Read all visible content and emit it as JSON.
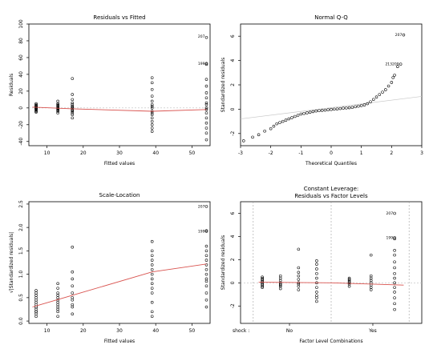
{
  "chart_data": [
    {
      "id": "rvf",
      "type": "scatter",
      "title": "Residuals vs Fitted",
      "xlabel": "Fitted values",
      "ylabel": "Residuals",
      "xlim": [
        5,
        55
      ],
      "ylim": [
        -45,
        100
      ],
      "xticks": [
        10,
        20,
        30,
        40,
        50
      ],
      "yticks": [
        -40,
        -20,
        0,
        20,
        40,
        60,
        80,
        100
      ],
      "clusters": [
        {
          "x": 7,
          "values": [
            -5,
            -3,
            -2,
            -1,
            0,
            1,
            2,
            3,
            4,
            5,
            -4,
            0,
            1,
            -1,
            2
          ]
        },
        {
          "x": 13,
          "values": [
            -6,
            -4,
            -3,
            -2,
            -1,
            0,
            1,
            2,
            3,
            5,
            8,
            -1,
            0,
            4
          ]
        },
        {
          "x": 17,
          "values": [
            -12,
            -8,
            -6,
            -4,
            -2,
            0,
            2,
            4,
            6,
            10,
            16,
            35,
            -3,
            1
          ]
        },
        {
          "x": 39,
          "values": [
            -28,
            -24,
            -20,
            -16,
            -12,
            -8,
            -4,
            0,
            4,
            8,
            14,
            22,
            30,
            36,
            -6,
            2
          ]
        },
        {
          "x": 54,
          "values": [
            -38,
            -30,
            -24,
            -18,
            -12,
            -6,
            0,
            6,
            12,
            18,
            26,
            34,
            52,
            53,
            84,
            -2,
            4
          ]
        }
      ],
      "smooth": [
        [
          6,
          1
        ],
        [
          17,
          -1
        ],
        [
          39,
          -4
        ],
        [
          54,
          -2
        ]
      ],
      "reference_y": 0,
      "point_labels": [
        {
          "label": "207",
          "x": 54,
          "y": 85
        },
        {
          "label": "199",
          "x": 54,
          "y": 53
        }
      ]
    },
    {
      "id": "qq",
      "type": "scatter",
      "title": "Normal Q-Q",
      "xlabel": "Theoretical Quantiles",
      "ylabel": "Standardized residuals",
      "xlim": [
        -3,
        3
      ],
      "ylim": [
        -3,
        7
      ],
      "xticks": [
        -3,
        -2,
        -1,
        0,
        1,
        2,
        3
      ],
      "yticks": [
        -2,
        0,
        2,
        4,
        6
      ],
      "points": [
        [
          -2.9,
          -2.6
        ],
        [
          -2.6,
          -2.3
        ],
        [
          -2.4,
          -2.1
        ],
        [
          -2.2,
          -1.8
        ],
        [
          -2.0,
          -1.6
        ],
        [
          -1.9,
          -1.4
        ],
        [
          -1.8,
          -1.2
        ],
        [
          -1.7,
          -1.1
        ],
        [
          -1.6,
          -1.0
        ],
        [
          -1.5,
          -0.9
        ],
        [
          -1.4,
          -0.8
        ],
        [
          -1.3,
          -0.7
        ],
        [
          -1.2,
          -0.6
        ],
        [
          -1.1,
          -0.5
        ],
        [
          -1.0,
          -0.4
        ],
        [
          -0.9,
          -0.35
        ],
        [
          -0.8,
          -0.3
        ],
        [
          -0.7,
          -0.25
        ],
        [
          -0.6,
          -0.2
        ],
        [
          -0.5,
          -0.15
        ],
        [
          -0.4,
          -0.12
        ],
        [
          -0.3,
          -0.1
        ],
        [
          -0.2,
          -0.08
        ],
        [
          -0.1,
          -0.05
        ],
        [
          0.0,
          -0.02
        ],
        [
          0.1,
          0.0
        ],
        [
          0.2,
          0.02
        ],
        [
          0.3,
          0.05
        ],
        [
          0.4,
          0.08
        ],
        [
          0.5,
          0.1
        ],
        [
          0.6,
          0.12
        ],
        [
          0.7,
          0.15
        ],
        [
          0.8,
          0.2
        ],
        [
          0.9,
          0.25
        ],
        [
          1.0,
          0.3
        ],
        [
          1.1,
          0.35
        ],
        [
          1.2,
          0.45
        ],
        [
          1.3,
          0.6
        ],
        [
          1.4,
          0.8
        ],
        [
          1.5,
          1.0
        ],
        [
          1.6,
          1.2
        ],
        [
          1.7,
          1.4
        ],
        [
          1.8,
          1.6
        ],
        [
          1.9,
          1.9
        ],
        [
          2.0,
          2.2
        ],
        [
          2.05,
          2.6
        ],
        [
          2.1,
          2.8
        ],
        [
          2.2,
          3.5
        ],
        [
          2.3,
          3.7
        ],
        [
          2.4,
          6.1
        ]
      ],
      "qq_line": [
        [
          -3,
          -0.8
        ],
        [
          3,
          1.05
        ]
      ],
      "point_labels": [
        {
          "label": "207",
          "x": 2.4,
          "y": 6.1
        },
        {
          "label": "213209",
          "x": 2.3,
          "y": 3.7
        }
      ]
    },
    {
      "id": "sl",
      "type": "scatter",
      "title": "Scale-Location",
      "xlabel": "Fitted values",
      "ylabel": "√|Standardized residuals|",
      "xlim": [
        5,
        55
      ],
      "ylim": [
        -0.05,
        2.55
      ],
      "xticks": [
        10,
        20,
        30,
        40,
        50
      ],
      "yticks": [
        0.0,
        0.5,
        1.0,
        1.5,
        2.0,
        2.5
      ],
      "clusters": [
        {
          "x": 7,
          "values": [
            0.1,
            0.15,
            0.2,
            0.25,
            0.3,
            0.35,
            0.4,
            0.45,
            0.5,
            0.55,
            0.6,
            0.65,
            0.2,
            0.3
          ]
        },
        {
          "x": 13,
          "values": [
            0.1,
            0.2,
            0.3,
            0.4,
            0.5,
            0.6,
            0.7,
            0.8,
            0.25,
            0.45,
            0.35,
            0.55
          ]
        },
        {
          "x": 17,
          "values": [
            0.15,
            0.3,
            0.45,
            0.6,
            0.75,
            0.9,
            1.05,
            0.5,
            1.58,
            0.35
          ]
        },
        {
          "x": 39,
          "values": [
            0.1,
            0.2,
            0.4,
            0.6,
            0.8,
            0.9,
            1.0,
            1.1,
            1.2,
            1.3,
            1.4,
            1.5,
            1.7,
            0.7
          ]
        },
        {
          "x": 54,
          "values": [
            0.3,
            0.45,
            0.6,
            0.75,
            0.9,
            1.0,
            1.1,
            1.2,
            1.3,
            1.4,
            1.5,
            1.6,
            1.92,
            1.93,
            2.45,
            0.85
          ]
        }
      ],
      "smooth": [
        [
          6,
          0.3
        ],
        [
          17,
          0.55
        ],
        [
          39,
          1.05
        ],
        [
          54,
          1.22
        ]
      ],
      "point_labels": [
        {
          "label": "207",
          "x": 54,
          "y": 2.45
        },
        {
          "label": "199",
          "x": 54,
          "y": 1.92
        }
      ]
    },
    {
      "id": "lev",
      "type": "scatter",
      "title": "Constant Leverage:",
      "subtitle": "Residuals vs Factor Levels",
      "xlabel": "Factor Level Combinations",
      "ylabel": "Standardized residuals",
      "xlim": [
        0,
        1
      ],
      "ylim": [
        -3.5,
        7
      ],
      "yticks": [
        -2,
        0,
        2,
        4,
        6
      ],
      "factor_name": "shock :",
      "factor_levels": [
        "No",
        "Yes"
      ],
      "level_bounds": [
        0.07,
        0.5,
        0.93
      ],
      "level_centers": [
        0.27,
        0.73
      ],
      "clusters": [
        {
          "x": 0.12,
          "values": [
            -0.3,
            -0.2,
            -0.1,
            0.0,
            0.1,
            0.2,
            0.3,
            0.4,
            0.5,
            -0.4
          ]
        },
        {
          "x": 0.22,
          "values": [
            -0.5,
            -0.3,
            -0.1,
            0.0,
            0.2,
            0.4,
            0.6,
            -0.2
          ]
        },
        {
          "x": 0.32,
          "values": [
            -0.6,
            -0.3,
            0.0,
            0.3,
            0.6,
            0.9,
            1.3,
            2.9,
            -0.1
          ]
        },
        {
          "x": 0.42,
          "values": [
            -1.6,
            -1.1,
            -0.8,
            -0.4,
            0.0,
            0.4,
            0.8,
            1.2,
            1.6,
            1.9,
            -1.3
          ]
        },
        {
          "x": 0.6,
          "values": [
            -0.3,
            -0.1,
            0.0,
            0.1,
            0.2,
            0.3,
            0.4
          ]
        },
        {
          "x": 0.72,
          "values": [
            -0.6,
            -0.4,
            -0.2,
            0.0,
            0.2,
            0.4,
            0.6,
            2.4
          ]
        },
        {
          "x": 0.85,
          "values": [
            -2.3,
            -1.8,
            -1.3,
            -0.8,
            -0.4,
            0.0,
            0.4,
            0.8,
            1.3,
            1.8,
            2.4,
            2.8,
            3.8,
            3.9,
            6.0
          ]
        }
      ],
      "smooth": [
        [
          0.1,
          0.05
        ],
        [
          0.5,
          0.0
        ],
        [
          0.9,
          -0.2
        ]
      ],
      "reference_y": 0,
      "point_labels": [
        {
          "label": "207",
          "x": 0.85,
          "y": 6.0
        },
        {
          "label": "199",
          "x": 0.85,
          "y": 3.9
        }
      ]
    }
  ]
}
